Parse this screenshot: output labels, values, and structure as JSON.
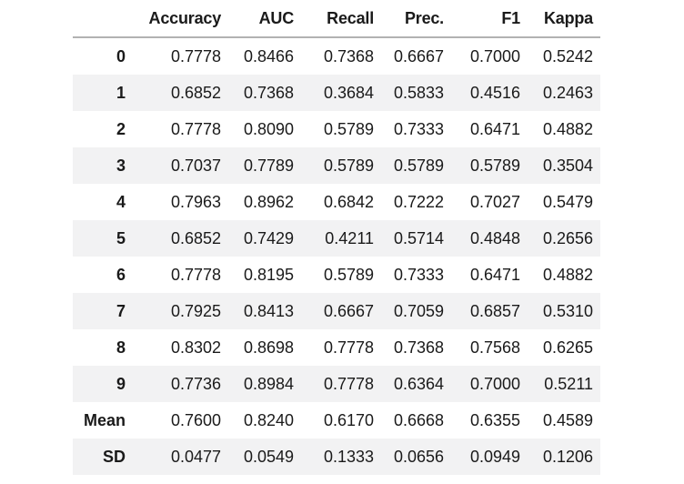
{
  "chart_data": {
    "type": "table",
    "title": "",
    "columns": [
      "",
      "Accuracy",
      "AUC",
      "Recall",
      "Prec.",
      "F1",
      "Kappa"
    ],
    "rows": [
      {
        "label": "0",
        "values": [
          "0.7778",
          "0.8466",
          "0.7368",
          "0.6667",
          "0.7000",
          "0.5242"
        ]
      },
      {
        "label": "1",
        "values": [
          "0.6852",
          "0.7368",
          "0.3684",
          "0.5833",
          "0.4516",
          "0.2463"
        ]
      },
      {
        "label": "2",
        "values": [
          "0.7778",
          "0.8090",
          "0.5789",
          "0.7333",
          "0.6471",
          "0.4882"
        ]
      },
      {
        "label": "3",
        "values": [
          "0.7037",
          "0.7789",
          "0.5789",
          "0.5789",
          "0.5789",
          "0.3504"
        ]
      },
      {
        "label": "4",
        "values": [
          "0.7963",
          "0.8962",
          "0.6842",
          "0.7222",
          "0.7027",
          "0.5479"
        ]
      },
      {
        "label": "5",
        "values": [
          "0.6852",
          "0.7429",
          "0.4211",
          "0.5714",
          "0.4848",
          "0.2656"
        ]
      },
      {
        "label": "6",
        "values": [
          "0.7778",
          "0.8195",
          "0.5789",
          "0.7333",
          "0.6471",
          "0.4882"
        ]
      },
      {
        "label": "7",
        "values": [
          "0.7925",
          "0.8413",
          "0.6667",
          "0.7059",
          "0.6857",
          "0.5310"
        ]
      },
      {
        "label": "8",
        "values": [
          "0.8302",
          "0.8698",
          "0.7778",
          "0.7368",
          "0.7568",
          "0.6265"
        ]
      },
      {
        "label": "9",
        "values": [
          "0.7736",
          "0.8984",
          "0.7778",
          "0.6364",
          "0.7000",
          "0.5211"
        ]
      },
      {
        "label": "Mean",
        "values": [
          "0.7600",
          "0.8240",
          "0.6170",
          "0.6668",
          "0.6355",
          "0.4589"
        ]
      },
      {
        "label": "SD",
        "values": [
          "0.0477",
          "0.0549",
          "0.1333",
          "0.0656",
          "0.0949",
          "0.1206"
        ]
      }
    ],
    "layout": {
      "legend": "none",
      "grid": "row-stripes",
      "header_rule": true
    }
  },
  "colors": {
    "background": "#ffffff",
    "row_stripe": "#f2f2f3",
    "header_border": "#b2b2b2",
    "text": "#1a1a1a"
  }
}
